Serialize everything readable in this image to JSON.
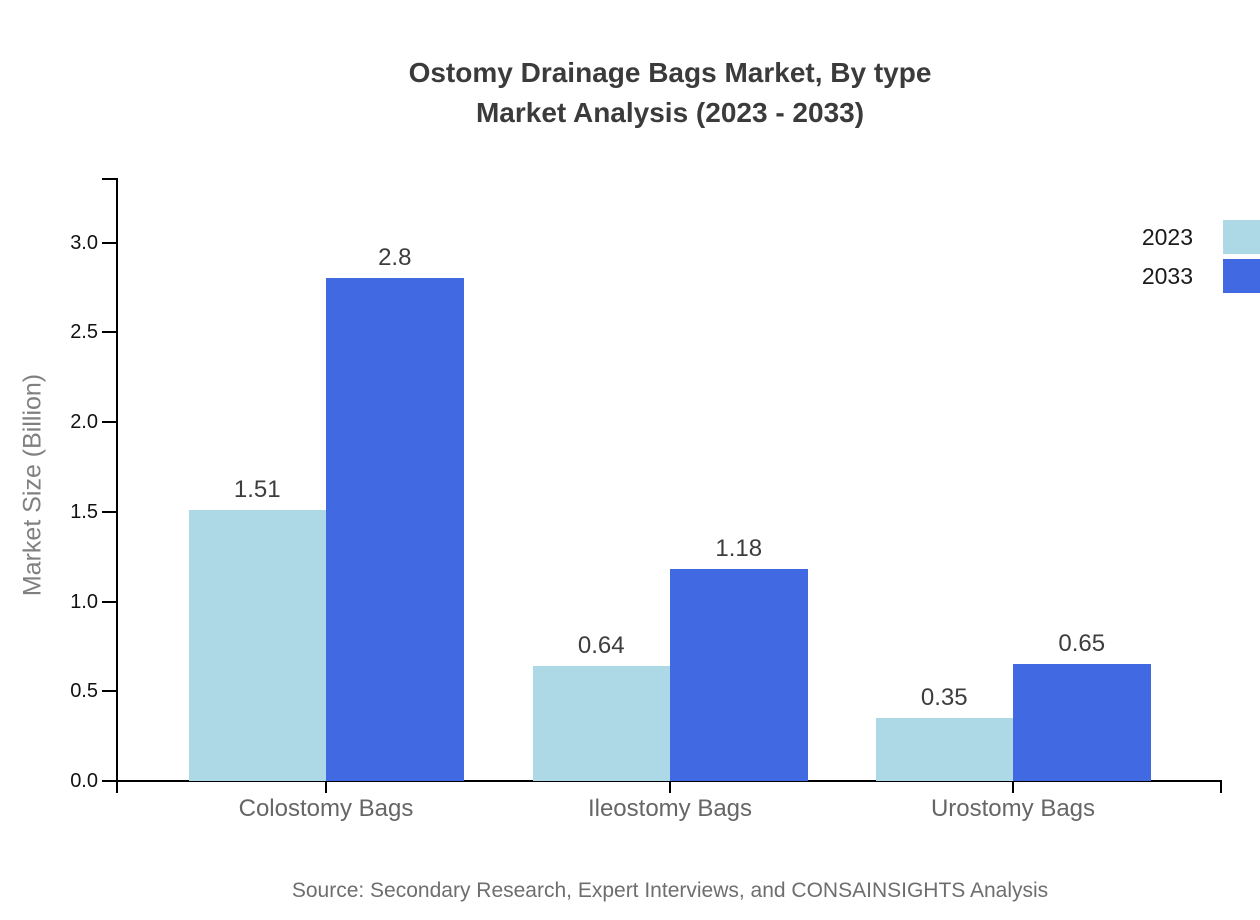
{
  "chart_data": {
    "type": "bar",
    "title_line1": "Ostomy Drainage Bags Market, By type",
    "title_line2": "Market Analysis (2023 - 2033)",
    "ylabel": "Market Size (Billion)",
    "xlabel": "",
    "categories": [
      "Colostomy Bags",
      "Ileostomy Bags",
      "Urostomy Bags"
    ],
    "series": [
      {
        "name": "2023",
        "color": "#ADD8E6",
        "values": [
          1.51,
          0.64,
          0.35
        ],
        "labels": [
          "1.51",
          "0.64",
          "0.35"
        ]
      },
      {
        "name": "2033",
        "color": "#4169E1",
        "values": [
          2.8,
          1.18,
          0.65
        ],
        "labels": [
          "2.8",
          "1.18",
          "0.65"
        ]
      }
    ],
    "yticks": [
      0.0,
      0.5,
      1.0,
      1.5,
      2.0,
      2.5,
      3.0
    ],
    "ytick_labels": [
      "0.0",
      "0.5",
      "1.0",
      "1.5",
      "2.0",
      "2.5",
      "3.0"
    ],
    "ylim": [
      0,
      3.36
    ],
    "grid": false,
    "legend_position": "outside-right-edge, upper right",
    "legend": [
      "2023",
      "2033"
    ],
    "source": "Source: Secondary Research, Expert Interviews, and CONSAINSIGHTS Analysis",
    "axis_color": "#000000"
  }
}
